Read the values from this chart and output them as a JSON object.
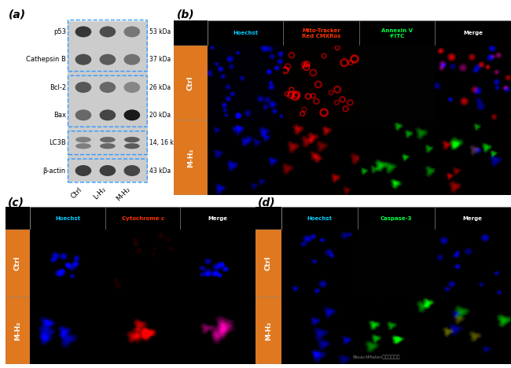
{
  "panel_a": {
    "label": "(a)",
    "protein_labels": [
      "p53",
      "Cathepsin B",
      "Bcl-2",
      "Bax",
      "LC3B",
      "β-actin"
    ],
    "kda_labels": [
      "53 kDa",
      "37 kDa",
      "26 kDa",
      "20 kDa",
      "14, 16 kDa",
      "43 kDa"
    ],
    "sample_labels": [
      "Ctrl",
      "L-H₂",
      "M-H₂"
    ],
    "dashed_box_color": "#3399ff",
    "band_groups": [
      [
        0,
        1
      ],
      [
        2,
        3
      ],
      [
        4
      ],
      [
        5
      ]
    ]
  },
  "panel_b": {
    "label": "(b)",
    "col_headers": [
      "Hoechst",
      "Mito-Tracker\nRed CMXRos",
      "Annexin V\n-FITC",
      "Merge"
    ],
    "col_header_colors": [
      "#00ccff",
      "#ff3300",
      "#00ff44",
      "#ffffff"
    ],
    "row_labels": [
      "Ctrl",
      "M-H₂"
    ],
    "row_label_bg": "#e07820"
  },
  "panel_c": {
    "label": "(c)",
    "col_headers": [
      "Hoechst",
      "Cytochrome c",
      "Merge"
    ],
    "col_header_colors": [
      "#00ccff",
      "#ff3300",
      "#ffffff"
    ],
    "row_labels": [
      "Ctrl",
      "M-H₂"
    ],
    "row_label_bg": "#e07820"
  },
  "panel_d": {
    "label": "(d)",
    "col_headers": [
      "Hoechst",
      "Caspase-3",
      "Merge"
    ],
    "col_header_colors": [
      "#00ccff",
      "#00ff44",
      "#ffffff"
    ],
    "row_labels": [
      "Ctrl",
      "M-H₂"
    ],
    "row_label_bg": "#e07820"
  },
  "watermark": "BioactMater生物活性材料",
  "bg_color": "#ffffff"
}
